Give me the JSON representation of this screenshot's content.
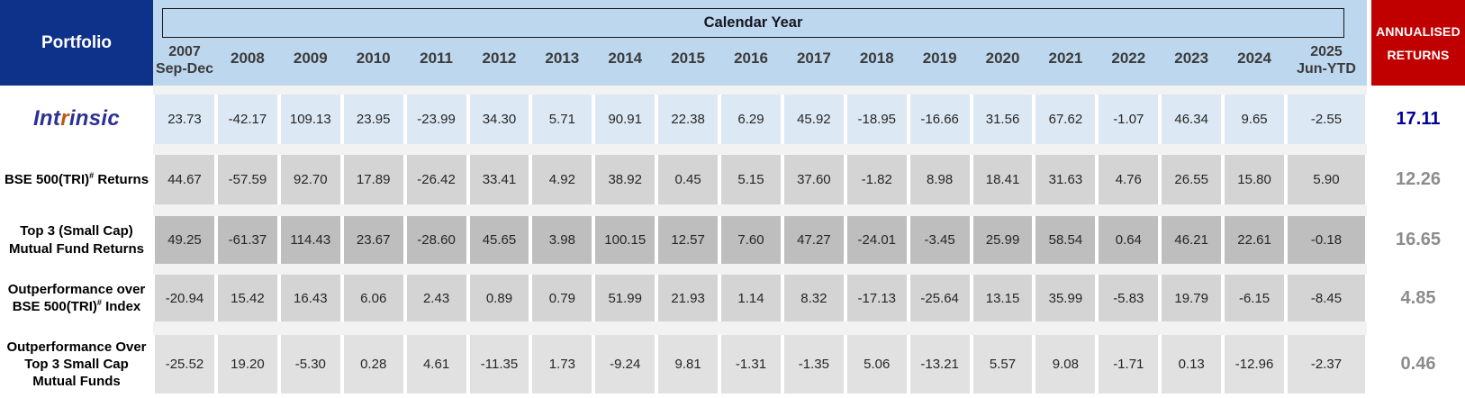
{
  "header": {
    "portfolio": "Portfolio",
    "calendar_year": "Calendar Year",
    "years": [
      {
        "line1": "2007",
        "line2": "Sep-Dec"
      },
      {
        "line1": "2008"
      },
      {
        "line1": "2009"
      },
      {
        "line1": "2010"
      },
      {
        "line1": "2011"
      },
      {
        "line1": "2012"
      },
      {
        "line1": "2013"
      },
      {
        "line1": "2014"
      },
      {
        "line1": "2015"
      },
      {
        "line1": "2016"
      },
      {
        "line1": "2017"
      },
      {
        "line1": "2018"
      },
      {
        "line1": "2019"
      },
      {
        "line1": "2020"
      },
      {
        "line1": "2021"
      },
      {
        "line1": "2022"
      },
      {
        "line1": "2023"
      },
      {
        "line1": "2024"
      },
      {
        "line1": "2025",
        "line2": "Jun-YTD"
      }
    ],
    "annualised": {
      "line1": "ANNUALISED",
      "line2": "RETURNS"
    }
  },
  "rows": [
    {
      "id": "intrinsic",
      "label_type": "logo",
      "logo_parts": [
        {
          "text": "Int",
          "color": "#2E3192"
        },
        {
          "text": "r",
          "color": "#C05A11"
        },
        {
          "text": "insic",
          "color": "#2E3192"
        }
      ],
      "cell_bg": "#DCE9F5",
      "values": [
        "23.73",
        "-42.17",
        "109.13",
        "23.95",
        "-23.99",
        "34.30",
        "5.71",
        "90.91",
        "22.38",
        "6.29",
        "45.92",
        "-18.95",
        "-16.66",
        "31.56",
        "67.62",
        "-1.07",
        "46.34",
        "9.65",
        "-2.55"
      ],
      "annualised": "17.11",
      "annualised_color": "#00009B"
    },
    {
      "id": "bse-500-tri-returns",
      "label_lines": [
        [
          {
            "text": "BSE 500(TRI)"
          },
          {
            "text": "#",
            "sup": true
          },
          {
            "text": " Returns"
          }
        ]
      ],
      "cell_bg": "#D4D4D4",
      "values": [
        "44.67",
        "-57.59",
        "92.70",
        "17.89",
        "-26.42",
        "33.41",
        "4.92",
        "38.92",
        "0.45",
        "5.15",
        "37.60",
        "-1.82",
        "8.98",
        "18.41",
        "31.63",
        "4.76",
        "26.55",
        "15.80",
        "5.90"
      ],
      "annualised": "12.26",
      "annualised_color": "#8C8C8C"
    },
    {
      "id": "top-3-small-cap-mutual-fund-returns",
      "label_lines": [
        [
          {
            "text": "Top 3 (Small Cap)"
          }
        ],
        [
          {
            "text": "Mutual Fund Returns"
          }
        ]
      ],
      "cell_bg": "#BEBEBE",
      "values": [
        "49.25",
        "-61.37",
        "114.43",
        "23.67",
        "-28.60",
        "45.65",
        "3.98",
        "100.15",
        "12.57",
        "7.60",
        "47.27",
        "-24.01",
        "-3.45",
        "25.99",
        "58.54",
        "0.64",
        "46.21",
        "22.61",
        "-0.18"
      ],
      "annualised": "16.65",
      "annualised_color": "#8C8C8C"
    },
    {
      "id": "outperformance-over-bse-500-index",
      "label_lines": [
        [
          {
            "text": "Outperformance over"
          }
        ],
        [
          {
            "text": "BSE 500(TRI)"
          },
          {
            "text": "#",
            "sup": true
          },
          {
            "text": " Index"
          }
        ]
      ],
      "cell_bg": "#D4D4D4",
      "values": [
        "-20.94",
        "15.42",
        "16.43",
        "6.06",
        "2.43",
        "0.89",
        "0.79",
        "51.99",
        "21.93",
        "1.14",
        "8.32",
        "-17.13",
        "-25.64",
        "13.15",
        "35.99",
        "-5.83",
        "19.79",
        "-6.15",
        "-8.45"
      ],
      "annualised": "4.85",
      "annualised_color": "#8C8C8C"
    },
    {
      "id": "outperformance-over-top-3-small-cap-mutual-funds",
      "label_lines": [
        [
          {
            "text": "Outperformance Over"
          }
        ],
        [
          {
            "text": "Top 3 Small Cap"
          }
        ],
        [
          {
            "text": "Mutual Funds"
          }
        ]
      ],
      "cell_bg": "#E1E1E1",
      "values": [
        "-25.52",
        "19.20",
        "-5.30",
        "0.28",
        "4.61",
        "-11.35",
        "1.73",
        "-9.24",
        "9.81",
        "-1.31",
        "-1.35",
        "5.06",
        "-13.21",
        "5.57",
        "9.08",
        "-1.71",
        "0.13",
        "-12.96",
        "-2.37"
      ],
      "annualised": "0.46",
      "annualised_color": "#8C8C8C"
    }
  ],
  "colors": {
    "navy": "#0E3189",
    "band-blue": "#BDD7EE",
    "red": "#C00000",
    "gap": "#F2F2F2"
  },
  "chart_data": {
    "type": "table",
    "title": "Calendar Year",
    "columns": [
      "2007 Sep-Dec",
      "2008",
      "2009",
      "2010",
      "2011",
      "2012",
      "2013",
      "2014",
      "2015",
      "2016",
      "2017",
      "2018",
      "2019",
      "2020",
      "2021",
      "2022",
      "2023",
      "2024",
      "2025 Jun-YTD",
      "Annualised Returns"
    ],
    "rows": [
      {
        "name": "Intrinsic",
        "values": [
          23.73,
          -42.17,
          109.13,
          23.95,
          -23.99,
          34.3,
          5.71,
          90.91,
          22.38,
          6.29,
          45.92,
          -18.95,
          -16.66,
          31.56,
          67.62,
          -1.07,
          46.34,
          9.65,
          -2.55
        ],
        "annualised": 17.11
      },
      {
        "name": "BSE 500(TRI)# Returns",
        "values": [
          44.67,
          -57.59,
          92.7,
          17.89,
          -26.42,
          33.41,
          4.92,
          38.92,
          0.45,
          5.15,
          37.6,
          -1.82,
          8.98,
          18.41,
          31.63,
          4.76,
          26.55,
          15.8,
          5.9
        ],
        "annualised": 12.26
      },
      {
        "name": "Top 3 (Small Cap) Mutual Fund Returns",
        "values": [
          49.25,
          -61.37,
          114.43,
          23.67,
          -28.6,
          45.65,
          3.98,
          100.15,
          12.57,
          7.6,
          47.27,
          -24.01,
          -3.45,
          25.99,
          58.54,
          0.64,
          46.21,
          22.61,
          -0.18
        ],
        "annualised": 16.65
      },
      {
        "name": "Outperformance over BSE 500(TRI)# Index",
        "values": [
          -20.94,
          15.42,
          16.43,
          6.06,
          2.43,
          0.89,
          0.79,
          51.99,
          21.93,
          1.14,
          8.32,
          -17.13,
          -25.64,
          13.15,
          35.99,
          -5.83,
          19.79,
          -6.15,
          -8.45
        ],
        "annualised": 4.85
      },
      {
        "name": "Outperformance Over Top 3 Small Cap Mutual Funds",
        "values": [
          -25.52,
          19.2,
          -5.3,
          0.28,
          4.61,
          -11.35,
          1.73,
          -9.24,
          9.81,
          -1.31,
          -1.35,
          5.06,
          -13.21,
          5.57,
          9.08,
          -1.71,
          0.13,
          -12.96,
          -2.37
        ],
        "annualised": 0.46
      }
    ]
  }
}
